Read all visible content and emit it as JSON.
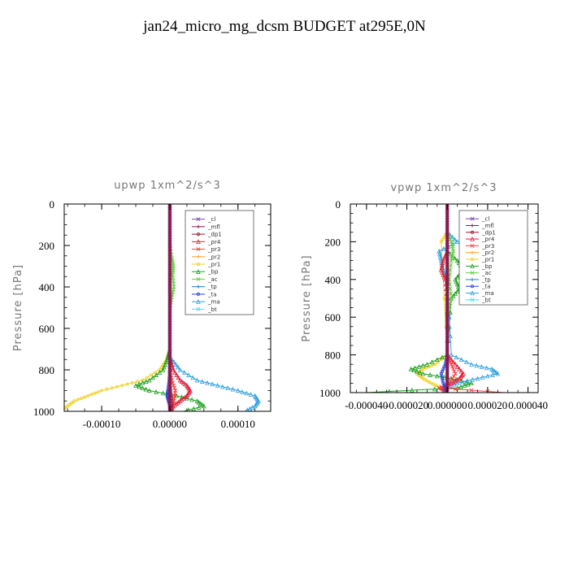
{
  "title": "jan24_micro_mg_dcsm  BUDGET at295E,0N",
  "legend_entries": [
    "_cl",
    "_mfl",
    "_dp1",
    "_pr4",
    "_pr3",
    "_pr2",
    "_pr1",
    "_bp",
    "_ac",
    "_tp",
    "_ta",
    "_ma",
    "_bt"
  ],
  "colors": {
    "_cl": "#7a4aa8",
    "_mfl": "#8b1a4a",
    "_dp1": "#a0102a",
    "_pr4": "#e0203a",
    "_pr3": "#ff4040",
    "_pr2": "#ffa030",
    "_pr1": "#f0d020",
    "_bp": "#20a020",
    "_ac": "#60d040",
    "_tp": "#2080d0",
    "_ta": "#2040e0",
    "_ma": "#30a0e0",
    "_bt": "#40e0ff"
  },
  "chart_data": [
    {
      "type": "line",
      "title": "upwp   1xm^2/s^3",
      "ylabel": "Pressure  [hPa]",
      "xlabel": "",
      "xlim": [
        -0.000155,
        0.000148
      ],
      "ylim": [
        1000,
        0
      ],
      "xticks": [
        -0.0001,
        0.0,
        0.0001
      ],
      "xtick_labels": [
        "-0.00010",
        "0.00000",
        "0.00010"
      ],
      "yticks": [
        0,
        200,
        400,
        600,
        800,
        1000
      ],
      "ytick_labels": [
        "0",
        "200",
        "400",
        "600",
        "800",
        "1000"
      ],
      "legend_position": "top-right",
      "series": [
        {
          "name": "_pr1",
          "p": [
            700,
            750,
            800,
            850,
            875,
            900,
            925,
            950,
            975,
            1000
          ],
          "values": [
            0,
            -5e-06,
            -1.5e-05,
            -4e-05,
            -7e-05,
            -0.0001,
            -0.00012,
            -0.00014,
            -0.00015,
            -0.00016
          ]
        },
        {
          "name": "_bp",
          "p": [
            700,
            750,
            800,
            850,
            875,
            900,
            925,
            950,
            975,
            1000
          ],
          "values": [
            0,
            -4e-06,
            -1e-05,
            -3e-05,
            -5e-05,
            -3e-05,
            1e-05,
            4e-05,
            5e-05,
            2e-05
          ]
        },
        {
          "name": "_ac",
          "p": [
            200,
            260,
            300,
            340,
            400,
            450,
            500
          ],
          "values": [
            0,
            3e-06,
            5e-06,
            4e-06,
            6e-06,
            3e-06,
            0
          ]
        },
        {
          "name": "_ma",
          "p": [
            750,
            800,
            850,
            875,
            900,
            925,
            950,
            975,
            1000
          ],
          "values": [
            3e-06,
            1.5e-05,
            4e-05,
            7e-05,
            0.0001,
            0.000125,
            0.00013,
            0.000125,
            0.00011
          ]
        },
        {
          "name": "_pr4",
          "p": [
            750,
            800,
            850,
            875,
            900,
            925,
            950,
            975,
            1000
          ],
          "values": [
            1e-06,
            5e-06,
            1.5e-05,
            2.5e-05,
            3e-05,
            2.5e-05,
            1.5e-05,
            5e-06,
            0
          ]
        },
        {
          "name": "_pr3",
          "p": [
            800,
            850,
            900,
            950,
            1000
          ],
          "values": [
            0,
            3e-06,
            8e-06,
            6e-06,
            2e-06
          ]
        },
        {
          "name": "_ta",
          "p": [
            800,
            850,
            900,
            925,
            950,
            975,
            1000
          ],
          "values": [
            0,
            -1e-06,
            -3e-06,
            -4e-06,
            -2e-06,
            0,
            1e-06
          ]
        },
        {
          "name": "_dp1",
          "p": [
            850,
            900,
            950,
            1000
          ],
          "values": [
            0,
            1e-06,
            3e-06,
            2e-06
          ]
        },
        {
          "name": "_cl",
          "p": [
            0,
            100,
            200,
            300,
            400,
            500,
            600,
            700,
            800,
            900,
            1000
          ],
          "values": [
            0,
            0,
            0,
            0,
            0,
            0,
            0,
            0,
            0,
            0,
            0
          ]
        },
        {
          "name": "_mfl",
          "p": [
            0,
            100,
            200,
            300,
            400,
            500,
            600,
            700,
            800,
            900,
            1000
          ],
          "values": [
            0,
            0,
            0,
            0,
            0,
            0,
            0,
            0,
            0,
            0,
            0
          ]
        }
      ]
    },
    {
      "type": "line",
      "title": "vpwp   1xm^2/s^3",
      "ylabel": "Pressure  [hPa]",
      "xlabel": "",
      "xlim": [
        -4.8e-05,
        4.5e-05
      ],
      "ylim": [
        1000,
        0
      ],
      "xticks": [
        -4e-05,
        -2e-05,
        0.0,
        2e-05,
        4e-05
      ],
      "xtick_labels": [
        "-0.000040",
        "-0.000020",
        "0.000000",
        "0.000020",
        "0.000040"
      ],
      "yticks": [
        0,
        200,
        400,
        600,
        800,
        1000
      ],
      "ytick_labels": [
        "0",
        "200",
        "400",
        "600",
        "800",
        "1000"
      ],
      "legend_position": "top-right",
      "series": [
        {
          "name": "_pr1",
          "p": [
            150,
            200,
            800,
            850,
            875,
            900,
            925,
            950,
            975,
            1000
          ],
          "values": [
            0,
            -3e-06,
            0,
            -6e-06,
            -1.2e-05,
            -1.5e-05,
            -1.2e-05,
            -8e-06,
            -3e-06,
            0
          ]
        },
        {
          "name": "_bp",
          "p": [
            250,
            300,
            350,
            400,
            450,
            500,
            800,
            850,
            875,
            900,
            925,
            950,
            975,
            1000
          ],
          "values": [
            0,
            5e-06,
            8e-06,
            4e-06,
            6e-06,
            2e-06,
            0,
            -1e-05,
            -1.8e-05,
            -1.2e-05,
            2e-06,
            1.2e-05,
            5e-06,
            -4e-05
          ]
        },
        {
          "name": "_ma",
          "p": [
            150,
            200,
            250,
            300,
            350,
            400,
            800,
            850,
            875,
            900,
            925,
            950,
            975,
            1000
          ],
          "values": [
            0,
            5e-06,
            -4e-06,
            -3e-06,
            -2e-06,
            0,
            2e-06,
            1.2e-05,
            2.2e-05,
            2.5e-05,
            1.5e-05,
            5e-06,
            -2e-06,
            0
          ]
        },
        {
          "name": "_pr4",
          "p": [
            250,
            300,
            350,
            400,
            500,
            800,
            850,
            900,
            925,
            950,
            975,
            1000
          ],
          "values": [
            0,
            -2e-06,
            -3e-06,
            -1e-06,
            0,
            0,
            4e-06,
            8e-06,
            6e-06,
            2e-06,
            -3e-06,
            0
          ]
        },
        {
          "name": "_pr3",
          "p": [
            800,
            850,
            900,
            950,
            975,
            1000
          ],
          "values": [
            0,
            2e-06,
            4e-06,
            1e-06,
            -4e-06,
            2.8e-05
          ]
        },
        {
          "name": "_ac",
          "p": [
            150,
            200,
            250,
            300,
            400,
            500,
            600
          ],
          "values": [
            0,
            2e-06,
            3e-06,
            2e-06,
            1e-06,
            2e-06,
            0
          ]
        },
        {
          "name": "_ta",
          "p": [
            800,
            850,
            900,
            950,
            1000
          ],
          "values": [
            0,
            -1e-06,
            -3e-06,
            -2e-06,
            0
          ]
        },
        {
          "name": "_cl",
          "p": [
            0,
            100,
            200,
            300,
            400,
            500,
            600,
            700,
            800,
            900,
            1000
          ],
          "values": [
            0,
            0,
            0,
            0,
            0,
            0,
            0,
            0,
            0,
            0,
            0
          ]
        },
        {
          "name": "_mfl",
          "p": [
            0,
            100,
            200,
            300,
            400,
            500,
            600,
            700,
            800,
            900,
            1000
          ],
          "values": [
            0,
            0,
            0,
            0,
            0,
            0,
            0,
            0,
            0,
            0,
            0
          ]
        }
      ]
    }
  ]
}
